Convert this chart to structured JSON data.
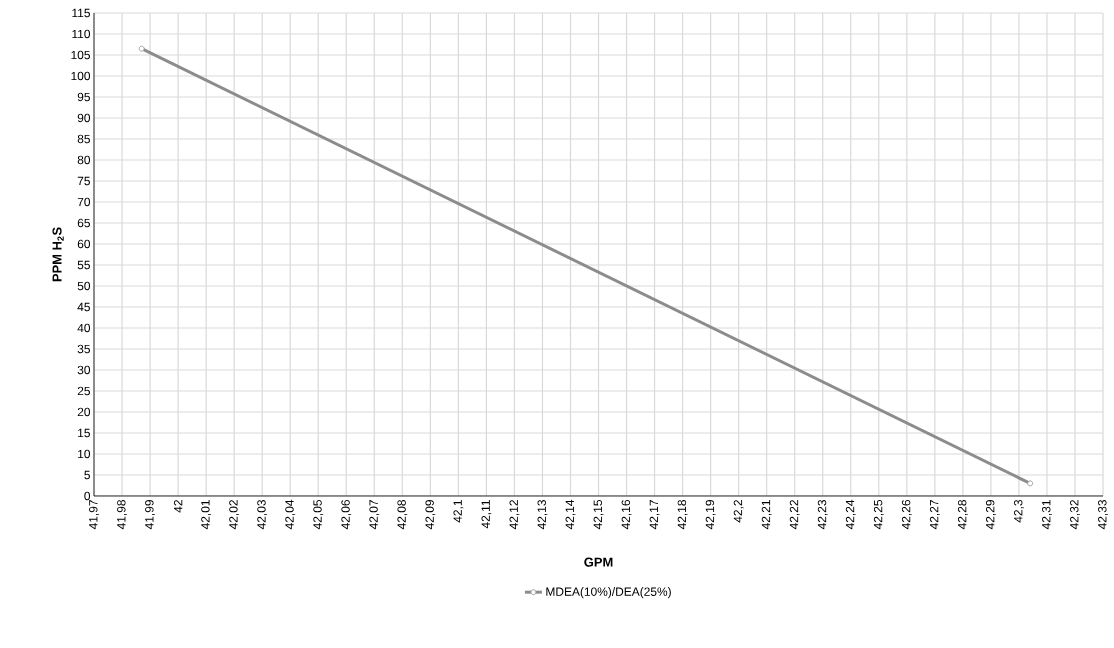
{
  "chart_data": {
    "type": "line",
    "xlabel": "GPM",
    "ylabel": "PPM H$_{2}$S",
    "series": [
      {
        "name": "MDEA(10%)/DEA(25%)",
        "color": "#8c8c8c",
        "x": [
          41.987,
          42.304
        ],
        "values": [
          106.5,
          3
        ]
      }
    ],
    "xlim": [
      41.97,
      42.33
    ],
    "ylim": [
      0,
      115
    ],
    "xticks": [
      {
        "value": 41.97,
        "label": "41,97"
      },
      {
        "value": 41.98,
        "label": "41,98"
      },
      {
        "value": 41.99,
        "label": "41,99"
      },
      {
        "value": 42,
        "label": "42"
      },
      {
        "value": 42.01,
        "label": "42,01"
      },
      {
        "value": 42.02,
        "label": "42,02"
      },
      {
        "value": 42.03,
        "label": "42,03"
      },
      {
        "value": 42.04,
        "label": "42,04"
      },
      {
        "value": 42.05,
        "label": "42,05"
      },
      {
        "value": 42.06,
        "label": "42,06"
      },
      {
        "value": 42.07,
        "label": "42,07"
      },
      {
        "value": 42.08,
        "label": "42,08"
      },
      {
        "value": 42.09,
        "label": "42,09"
      },
      {
        "value": 42.1,
        "label": "42,1"
      },
      {
        "value": 42.11,
        "label": "42,11"
      },
      {
        "value": 42.12,
        "label": "42,12"
      },
      {
        "value": 42.13,
        "label": "42,13"
      },
      {
        "value": 42.14,
        "label": "42,14"
      },
      {
        "value": 42.15,
        "label": "42,15"
      },
      {
        "value": 42.16,
        "label": "42,16"
      },
      {
        "value": 42.17,
        "label": "42,17"
      },
      {
        "value": 42.18,
        "label": "42,18"
      },
      {
        "value": 42.19,
        "label": "42,19"
      },
      {
        "value": 42.2,
        "label": "42,2"
      },
      {
        "value": 42.21,
        "label": "42,21"
      },
      {
        "value": 42.22,
        "label": "42,22"
      },
      {
        "value": 42.23,
        "label": "42,23"
      },
      {
        "value": 42.24,
        "label": "42,24"
      },
      {
        "value": 42.25,
        "label": "42,25"
      },
      {
        "value": 42.26,
        "label": "42,26"
      },
      {
        "value": 42.27,
        "label": "42,27"
      },
      {
        "value": 42.28,
        "label": "42,28"
      },
      {
        "value": 42.29,
        "label": "42,29"
      },
      {
        "value": 42.3,
        "label": "42,3"
      },
      {
        "value": 42.31,
        "label": "42,31"
      },
      {
        "value": 42.32,
        "label": "42,32"
      },
      {
        "value": 42.33,
        "label": "42,33"
      }
    ],
    "yticks": [
      0,
      5,
      10,
      15,
      20,
      25,
      30,
      35,
      40,
      45,
      50,
      55,
      60,
      65,
      70,
      75,
      80,
      85,
      90,
      95,
      100,
      105,
      110,
      115
    ],
    "grid": true,
    "legend": "bottom",
    "marker": "circle",
    "line_style": "solid"
  }
}
